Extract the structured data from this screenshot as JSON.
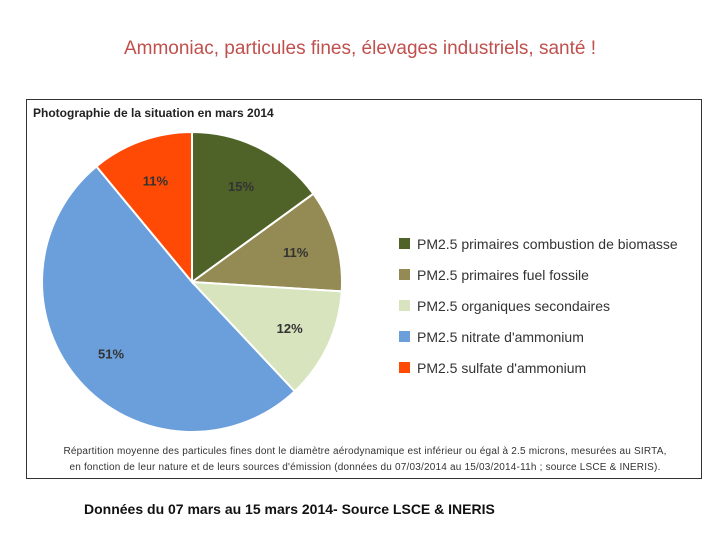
{
  "slide": {
    "title": "Ammoniac, particules fines, élevages industriels, santé !",
    "source_note": "Données du 07 mars au 15 mars 2014- Source LSCE & INERIS"
  },
  "figure": {
    "caption_title": "Photographie de la situation en mars 2014",
    "footnote_line1": "Répartition moyenne des particules fines dont le diamètre aérodynamique est inférieur ou égal à 2.5 microns, mesurées au SIRTA,",
    "footnote_line2": "en fonction de leur nature et de leurs sources d'émission (données du 07/03/2014 au 15/03/2014-11h ; source LSCE & INERIS)."
  },
  "chart_data": {
    "type": "pie",
    "title": "Photographie de la situation en mars 2014",
    "slices": [
      {
        "label": "PM2.5 primaires combustion de biomasse",
        "value": 15,
        "display": "15%",
        "color": "#4f6228"
      },
      {
        "label": "PM2.5 primaires fuel fossile",
        "value": 11,
        "display": "11%",
        "color": "#948a54"
      },
      {
        "label": "PM2.5 organiques secondaires",
        "value": 12,
        "display": "12%",
        "color": "#d7e4bd"
      },
      {
        "label": "PM2.5 nitrate d'ammonium",
        "value": 51,
        "display": "51%",
        "color": "#6a9fdb"
      },
      {
        "label": "PM2.5 sulfate d'ammonium",
        "value": 11,
        "display": "11%",
        "color": "#ff4a05"
      }
    ],
    "legend_position": "right"
  }
}
